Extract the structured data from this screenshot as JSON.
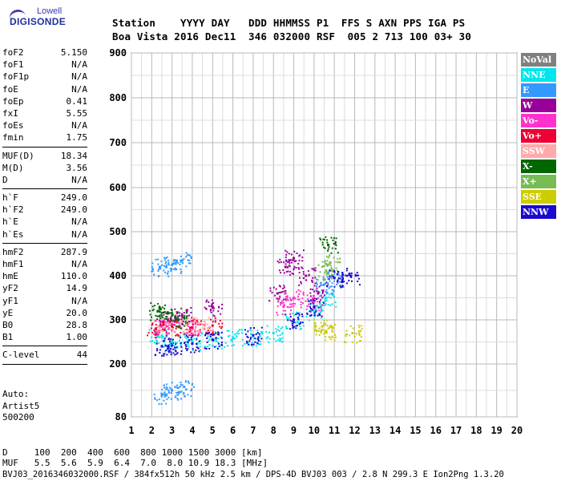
{
  "logo": {
    "top": "Lowell",
    "main": "DIGISONDE"
  },
  "header": {
    "row1": "Station    YYYY DAY   DDD HHMMSS P1  FFS S AXN PPS IGA PS",
    "row2": "Boa Vista 2016 Dec11  346 032000 RSF  005 2 713 100 03+ 30"
  },
  "params": {
    "group1": [
      {
        "k": "foF2",
        "v": "5.150"
      },
      {
        "k": "foF1",
        "v": "N/A"
      },
      {
        "k": "foF1p",
        "v": "N/A"
      },
      {
        "k": "foE",
        "v": "N/A"
      },
      {
        "k": "foEp",
        "v": "0.41"
      },
      {
        "k": "fxI",
        "v": "5.55"
      },
      {
        "k": "foEs",
        "v": "N/A"
      },
      {
        "k": "fmin",
        "v": "1.75"
      }
    ],
    "group2": [
      {
        "k": "MUF(D)",
        "v": "18.34"
      },
      {
        "k": "M(D)",
        "v": "3.56"
      },
      {
        "k": "D",
        "v": "N/A"
      }
    ],
    "group3": [
      {
        "k": "h`F",
        "v": "249.0"
      },
      {
        "k": "h`F2",
        "v": "249.0"
      },
      {
        "k": "h`E",
        "v": "N/A"
      },
      {
        "k": "h`Es",
        "v": "N/A"
      }
    ],
    "group4": [
      {
        "k": "hmF2",
        "v": "287.9"
      },
      {
        "k": "hmF1",
        "v": "N/A"
      },
      {
        "k": "hmE",
        "v": "110.0"
      },
      {
        "k": "yF2",
        "v": "14.9"
      },
      {
        "k": "yF1",
        "v": "N/A"
      },
      {
        "k": "yE",
        "v": "20.0"
      },
      {
        "k": "B0",
        "v": "28.8"
      },
      {
        "k": "B1",
        "v": "1.00"
      }
    ],
    "group5": [
      {
        "k": "C-level",
        "v": "44"
      }
    ]
  },
  "auto": {
    "line1": "Auto:",
    "line2": "Artist5",
    "line3": "500200"
  },
  "legend": [
    {
      "label": "NoVal",
      "bg": "#808080",
      "fg": "#ffffff"
    },
    {
      "label": "NNE",
      "bg": "#00e5ee",
      "fg": "#ffffff"
    },
    {
      "label": "E",
      "bg": "#3399ff",
      "fg": "#ffffff"
    },
    {
      "label": "W",
      "bg": "#990099",
      "fg": "#ffffff"
    },
    {
      "label": "Vo-",
      "bg": "#ff33cc",
      "fg": "#ffffff"
    },
    {
      "label": "Vo+",
      "bg": "#ee0033",
      "fg": "#ffffff"
    },
    {
      "label": "SSW",
      "bg": "#ffaaaa",
      "fg": "#ffffff"
    },
    {
      "label": "X-",
      "bg": "#006600",
      "fg": "#ffffff"
    },
    {
      "label": "X+",
      "bg": "#77bb55",
      "fg": "#ffffff"
    },
    {
      "label": "SSE",
      "bg": "#cccc00",
      "fg": "#ffffff"
    },
    {
      "label": "NNW",
      "bg": "#1a0ad0",
      "fg": "#ffffff"
    }
  ],
  "footer": {
    "line1": "D     100  200  400  600  800 1000 1500 3000 [km]",
    "line2": "MUF   5.5  5.6  5.9  6.4  7.0  8.0 10.9 18.3 [MHz]",
    "line3": "BVJ03_2016346032000.RSF / 384fx512h 50 kHz 2.5 km / DPS-4D BVJ03 003 / 2.8 N 299.3 E Ion2Png 1.3.20"
  },
  "chart_data": {
    "type": "scatter",
    "xlabel": "",
    "ylabel": "",
    "xlim": [
      1,
      20
    ],
    "ylim": [
      80,
      900
    ],
    "xticks": [
      "1",
      "2",
      "3",
      "4",
      "5",
      "6",
      "7",
      "8",
      "9",
      "10",
      "11",
      "12",
      "13",
      "14",
      "15",
      "16",
      "17",
      "18",
      "19",
      "20"
    ],
    "yticks": [
      "80",
      "200",
      "300",
      "400",
      "500",
      "600",
      "700",
      "800",
      "900"
    ],
    "grid": true,
    "y_scale": "nonlinear (Digisonde height axis)",
    "series": [
      {
        "name": "NNE",
        "color": "#00e5ee",
        "points": [
          [
            2.3,
            262
          ],
          [
            3.0,
            250
          ],
          [
            4.0,
            252
          ],
          [
            5.0,
            256
          ],
          [
            6.0,
            260
          ],
          [
            7.0,
            262
          ],
          [
            8.0,
            270
          ],
          [
            9.0,
            300
          ],
          [
            10.0,
            320
          ],
          [
            10.6,
            350
          ]
        ]
      },
      {
        "name": "E",
        "color": "#3399ff",
        "points": [
          [
            2.5,
            130
          ],
          [
            3.0,
            140
          ],
          [
            3.6,
            148
          ],
          [
            2.4,
            420
          ],
          [
            3.0,
            425
          ],
          [
            3.5,
            435
          ],
          [
            10.5,
            380
          ],
          [
            11.0,
            395
          ]
        ]
      },
      {
        "name": "W",
        "color": "#990099",
        "points": [
          [
            2.8,
            300
          ],
          [
            3.5,
            310
          ],
          [
            5.0,
            330
          ],
          [
            8.2,
            360
          ],
          [
            8.6,
            420
          ],
          [
            9.0,
            440
          ],
          [
            9.6,
            400
          ],
          [
            10.2,
            360
          ]
        ]
      },
      {
        "name": "Vo-",
        "color": "#ff33cc",
        "points": [
          [
            2.5,
            285
          ],
          [
            3.0,
            290
          ],
          [
            4.0,
            280
          ],
          [
            8.5,
            330
          ],
          [
            9.0,
            350
          ],
          [
            10.0,
            340
          ]
        ]
      },
      {
        "name": "Vo+",
        "color": "#ee0033",
        "points": [
          [
            2.2,
            280
          ],
          [
            3.0,
            285
          ],
          [
            4.0,
            283
          ],
          [
            5.0,
            287
          ]
        ]
      },
      {
        "name": "SSW",
        "color": "#ffaaaa",
        "points": [
          [
            2.7,
            292
          ],
          [
            3.7,
            288
          ],
          [
            4.5,
            290
          ]
        ]
      },
      {
        "name": "X-",
        "color": "#006600",
        "points": [
          [
            2.3,
            320
          ],
          [
            2.8,
            315
          ],
          [
            3.3,
            300
          ],
          [
            10.7,
            470
          ]
        ]
      },
      {
        "name": "X+",
        "color": "#77bb55",
        "points": [
          [
            10.8,
            430
          ],
          [
            10.6,
            410
          ]
        ]
      },
      {
        "name": "SSE",
        "color": "#cccc00",
        "points": [
          [
            10.4,
            285
          ],
          [
            10.6,
            275
          ],
          [
            11.9,
            270
          ]
        ]
      },
      {
        "name": "NNW",
        "color": "#1a0ad0",
        "points": [
          [
            2.5,
            240
          ],
          [
            3.0,
            242
          ],
          [
            4.0,
            246
          ],
          [
            5.0,
            255
          ],
          [
            7.0,
            265
          ],
          [
            9.0,
            300
          ],
          [
            10.0,
            330
          ],
          [
            11.0,
            395
          ],
          [
            11.8,
            400
          ]
        ]
      }
    ]
  }
}
